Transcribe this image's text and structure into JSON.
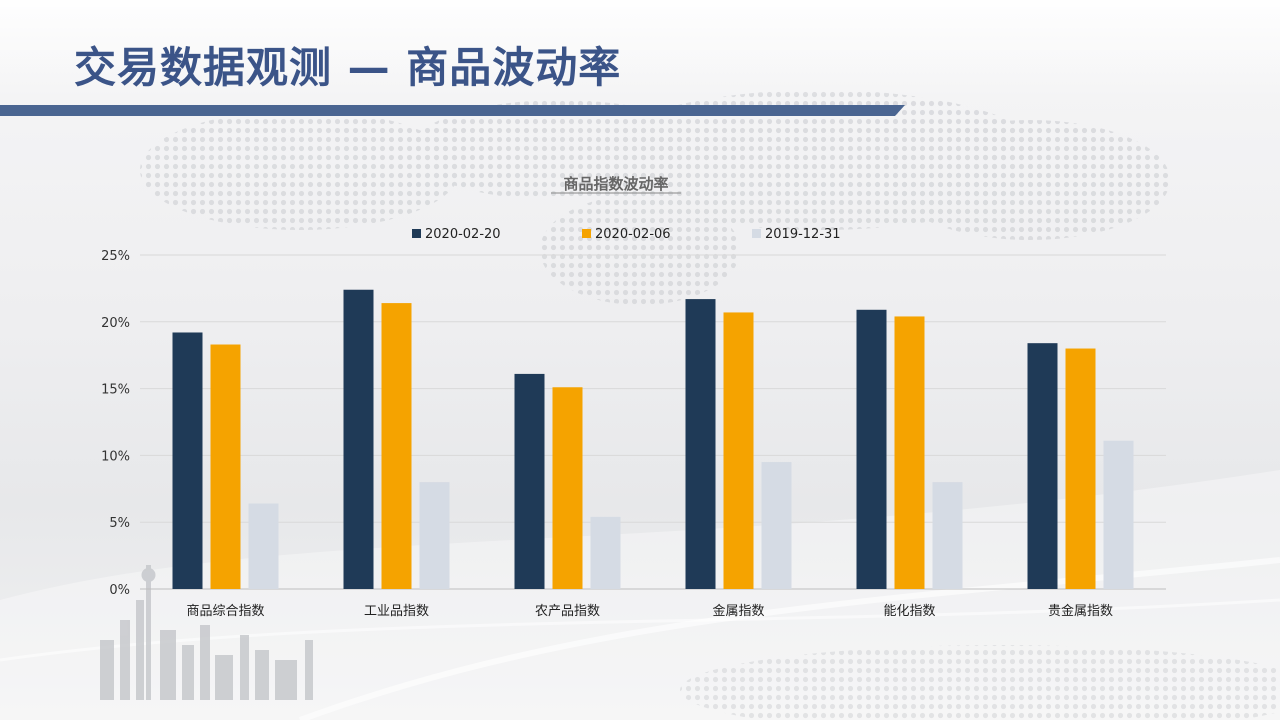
{
  "slide": {
    "title": "交易数据观测 — 商品波动率"
  },
  "colors": {
    "title": "#3b5488",
    "rule": "#4a6591",
    "series": [
      "#1f3a57",
      "#f5a300",
      "#d5dbe4"
    ]
  },
  "chart_data": {
    "type": "bar",
    "title": "商品指数波动率",
    "xlabel": "",
    "ylabel": "",
    "ylim": [
      0,
      25
    ],
    "yticks": [
      0,
      5,
      10,
      15,
      20,
      25
    ],
    "ytick_format": "%",
    "grid": true,
    "legend_position": "top",
    "categories": [
      "商品综合指数",
      "工业品指数",
      "农产品指数",
      "金属指数",
      "能化指数",
      "贵金属指数"
    ],
    "series": [
      {
        "name": "2020-02-20",
        "color": "#1f3a57",
        "values": [
          19.2,
          22.4,
          16.1,
          21.7,
          20.9,
          18.4
        ]
      },
      {
        "name": "2020-02-06",
        "color": "#f5a300",
        "values": [
          18.3,
          21.4,
          15.1,
          20.7,
          20.4,
          18.0
        ]
      },
      {
        "name": "2019-12-31",
        "color": "#d5dbe4",
        "values": [
          6.4,
          8.0,
          5.4,
          9.5,
          8.0,
          11.1
        ]
      }
    ]
  }
}
